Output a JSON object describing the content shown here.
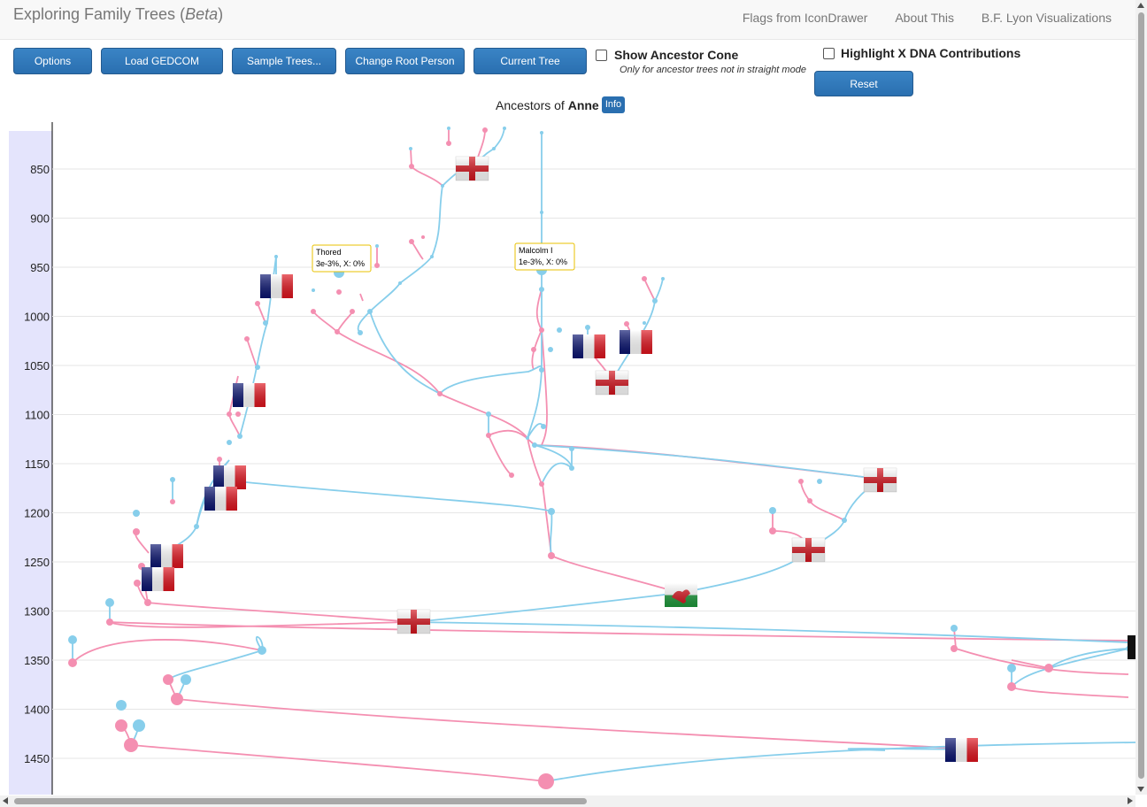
{
  "header": {
    "brand": "Exploring Family Trees",
    "brand_suffix": "Beta",
    "links": [
      "Flags from IconDrawer",
      "About This",
      "B.F. Lyon Visualizations"
    ]
  },
  "toolbar": {
    "options": "Options",
    "load": "Load GEDCOM File...",
    "sample": "Sample Trees...",
    "root": "Change Root Person",
    "details": "Current Tree Details",
    "cone_label": "Show Ancestor Cone",
    "cone_hint": "Only for ancestor trees not in straight mode",
    "xdna_label": "Highlight X DNA Contributions",
    "reset": "Reset Pan/Zoom"
  },
  "tree_title": {
    "prefix": "Ancestors of",
    "name": "Anne",
    "info": "Info"
  },
  "chart_data": {
    "type": "tree",
    "y_axis_years": [
      "850",
      "900",
      "950",
      "1000",
      "1050",
      "1100",
      "1150",
      "1200",
      "1250",
      "1300",
      "1350",
      "1400",
      "1450"
    ],
    "tooltips": [
      {
        "name": "Thored",
        "detail": "3e-3%, X: 0%"
      },
      {
        "name": "Malcolm I",
        "detail": "1e-3%, X: 0%"
      }
    ],
    "colors": {
      "male": "#87ceeb",
      "female": "#f48fb1",
      "axis_band": "#e4e4fc"
    }
  }
}
